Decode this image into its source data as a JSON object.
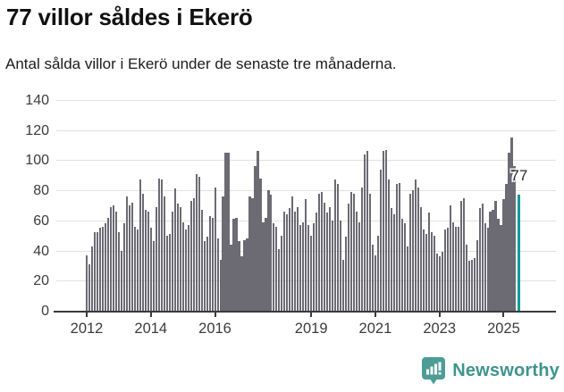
{
  "header": {
    "title": "77 villor såldes i Ekerö",
    "subtitle": "Antal sålda villor i Ekerö under de senaste tre månaderna."
  },
  "chart_data": {
    "type": "bar",
    "title": "77 villor såldes i Ekerö",
    "subtitle": "Antal sålda villor i Ekerö under de senaste tre månaderna.",
    "x_frequency": "monthly",
    "start_year": 2012,
    "ylim": [
      0,
      140
    ],
    "yticks": [
      0,
      20,
      40,
      60,
      80,
      100,
      120,
      140
    ],
    "xtick_years": [
      2012,
      2014,
      2016,
      2019,
      2021,
      2023,
      2025
    ],
    "grid": "horizontal",
    "legend": "none",
    "bar_color": "#6c6b74",
    "values": [
      37,
      31,
      43,
      52,
      52,
      55,
      56,
      58,
      62,
      69,
      70,
      66,
      52,
      40,
      58,
      76,
      70,
      72,
      56,
      54,
      87,
      78,
      67,
      66,
      55,
      46,
      69,
      88,
      87,
      76,
      50,
      51,
      66,
      81,
      71,
      69,
      59,
      54,
      57,
      73,
      75,
      91,
      89,
      67,
      46,
      49,
      63,
      62,
      82,
      48,
      34,
      76,
      105,
      105,
      44,
      61,
      62,
      46,
      36,
      47,
      48,
      76,
      75,
      96,
      106,
      88,
      59,
      62,
      80,
      77,
      58,
      56,
      41,
      50,
      66,
      64,
      68,
      76,
      66,
      69,
      57,
      59,
      74,
      57,
      50,
      58,
      65,
      78,
      79,
      72,
      65,
      69,
      60,
      87,
      84,
      60,
      34,
      49,
      71,
      79,
      78,
      66,
      59,
      82,
      104,
      106,
      78,
      44,
      37,
      50,
      94,
      106,
      107,
      87,
      68,
      64,
      84,
      85,
      61,
      58,
      43,
      78,
      80,
      87,
      82,
      69,
      54,
      51,
      65,
      52,
      50,
      38,
      36,
      39,
      54,
      55,
      70,
      59,
      56,
      56,
      73,
      75,
      44,
      33,
      34,
      35,
      47,
      68,
      71,
      58,
      55,
      66,
      67,
      73,
      61,
      57,
      74,
      84,
      105,
      115,
      96,
      77
    ],
    "highlight_last": {
      "value": 77,
      "label": "77",
      "color": "#129a9a"
    }
  },
  "footer": {
    "brand": "Newsworthy",
    "brand_color": "#4e9c96"
  }
}
